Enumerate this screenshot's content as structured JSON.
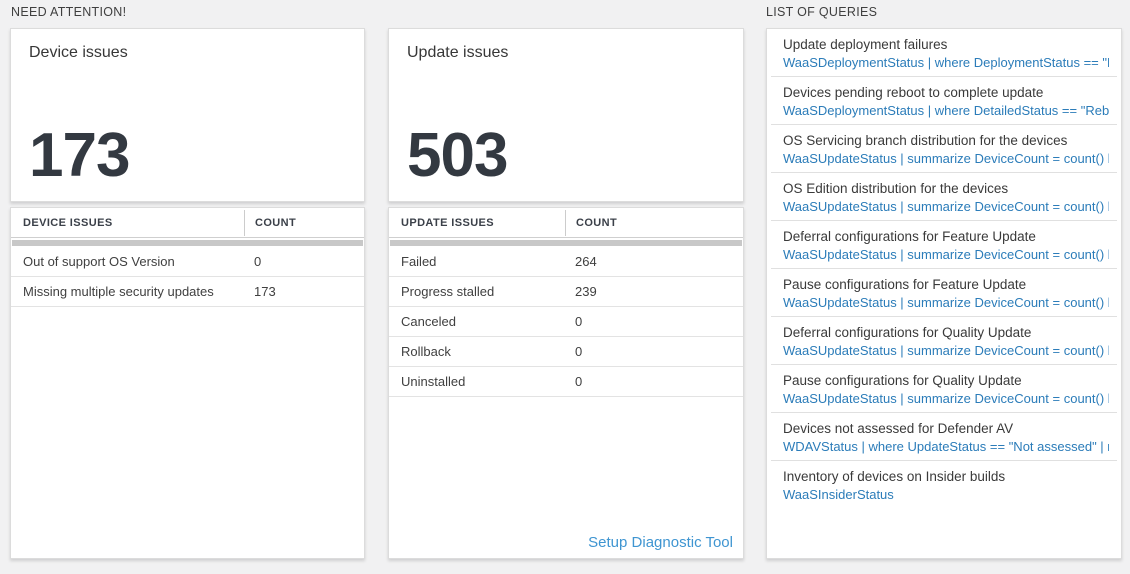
{
  "sections": {
    "need_attention": {
      "label": "NEED ATTENTION!"
    },
    "list_of_queries": {
      "label": "LIST OF QUERIES"
    }
  },
  "device_card": {
    "title": "Device issues",
    "big_number": "173",
    "table": {
      "columns": [
        "DEVICE ISSUES",
        "COUNT"
      ],
      "rows": [
        [
          "Out of support OS Version",
          "0"
        ],
        [
          "Missing multiple security updates",
          "173"
        ]
      ]
    }
  },
  "update_card": {
    "title": "Update issues",
    "big_number": "503",
    "table": {
      "columns": [
        "UPDATE ISSUES",
        "COUNT"
      ],
      "rows": [
        [
          "Failed",
          "264"
        ],
        [
          "Progress stalled",
          "239"
        ],
        [
          "Canceled",
          "0"
        ],
        [
          "Rollback",
          "0"
        ],
        [
          "Uninstalled",
          "0"
        ]
      ]
    },
    "footer_link": "Setup Diagnostic Tool"
  },
  "queries": {
    "items": [
      {
        "title": "Update deployment failures",
        "query": "WaaSDeploymentStatus | where DeploymentStatus == \"Failed\" |..."
      },
      {
        "title": "Devices pending reboot to complete update",
        "query": "WaaSDeploymentStatus | where DetailedStatus == \"Reboot pend..."
      },
      {
        "title": "OS Servicing branch distribution for the devices",
        "query": "WaaSUpdateStatus | summarize DeviceCount = count() by OSSer..."
      },
      {
        "title": "OS Edition distribution for the devices",
        "query": "WaaSUpdateStatus | summarize DeviceCount = count() by OSEdit..."
      },
      {
        "title": "Deferral configurations for Feature Update",
        "query": "WaaSUpdateStatus | summarize DeviceCount = count() by Featur..."
      },
      {
        "title": "Pause configurations for Feature Update",
        "query": "WaaSUpdateStatus | summarize DeviceCount = count() by Featur..."
      },
      {
        "title": "Deferral configurations for Quality Update",
        "query": "WaaSUpdateStatus | summarize DeviceCount = count() by Qualit..."
      },
      {
        "title": "Pause configurations for Quality Update",
        "query": "WaaSUpdateStatus | summarize DeviceCount = count() by Qualit..."
      },
      {
        "title": "Devices not assessed for Defender AV",
        "query": "WDAVStatus | where UpdateStatus == \"Not assessed\" | render ta..."
      },
      {
        "title": "Inventory of devices on Insider builds",
        "query": "WaaSInsiderStatus"
      }
    ]
  },
  "colors": {
    "page_background": "#f1f1f2",
    "panel_background": "#ffffff",
    "panel_border": "#dcdcdc",
    "big_number_text": "#333941",
    "query_text_blue": "#2b7cb9",
    "footer_link_blue": "#3f95d1",
    "scrollbar_gray": "#c8c8c8"
  }
}
